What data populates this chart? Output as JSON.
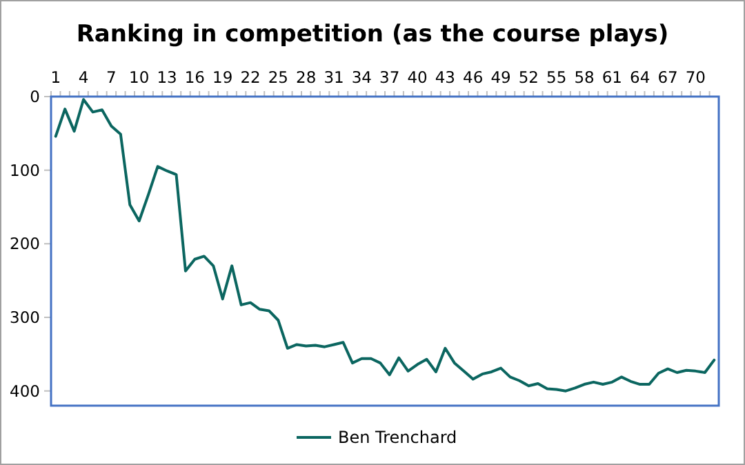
{
  "chart_data": {
    "type": "line",
    "title": "Ranking in competition (as the course plays)",
    "categories": [
      "1",
      null,
      null,
      "4",
      null,
      null,
      "7",
      null,
      null,
      "10",
      null,
      null,
      "13",
      null,
      null,
      "16",
      null,
      null,
      "19",
      null,
      null,
      "22",
      null,
      null,
      "25",
      null,
      null,
      "28",
      null,
      null,
      "31",
      null,
      null,
      "34",
      null,
      null,
      "37",
      null,
      null,
      "40",
      null,
      null,
      "43",
      null,
      null,
      "46",
      null,
      null,
      "49",
      null,
      null,
      "52",
      null,
      null,
      "55",
      null,
      null,
      "58",
      null,
      null,
      "61",
      null,
      null,
      "64",
      null,
      null,
      "67",
      null,
      null,
      "70",
      null,
      null
    ],
    "series": [
      {
        "name": "Ben Trenchard",
        "color": "#0b6660",
        "values": [
          54,
          17,
          47,
          4,
          21,
          18,
          40,
          51,
          147,
          169,
          133,
          95,
          101,
          106,
          237,
          221,
          217,
          230,
          275,
          230,
          283,
          280,
          289,
          291,
          304,
          342,
          337,
          339,
          338,
          340,
          337,
          334,
          362,
          356,
          356,
          362,
          378,
          355,
          373,
          364,
          357,
          374,
          342,
          362,
          373,
          384,
          377,
          374,
          369,
          381,
          386,
          393,
          390,
          397,
          398,
          400,
          396,
          391,
          388,
          391,
          388,
          381,
          387,
          391,
          391,
          376,
          370,
          375,
          372,
          373,
          375,
          358
        ]
      }
    ],
    "ylim": [
      420,
      0
    ],
    "yticks": [
      0,
      100,
      200,
      300,
      400
    ],
    "grid": false,
    "legend": "bottom",
    "marker": "none",
    "line_style": "solid"
  }
}
